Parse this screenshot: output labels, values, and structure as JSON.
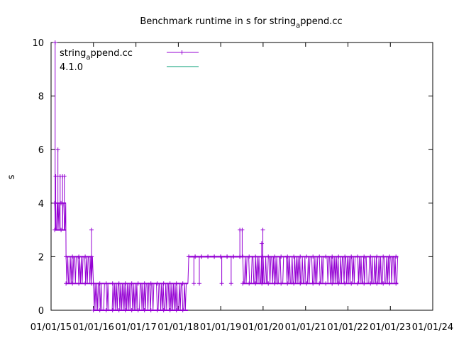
{
  "chart_data": {
    "type": "line",
    "title_main": "Benchmark runtime in s for string",
    "title_sub": "a",
    "title_end": "ppend.cc",
    "xlabel": "",
    "ylabel": "s",
    "xlim": [
      "2015-01-01",
      "2024-01-01"
    ],
    "ylim": [
      0,
      10
    ],
    "x_tick_labels": [
      "01/01/15",
      "01/01/16",
      "01/01/17",
      "01/01/18",
      "01/01/19",
      "01/01/20",
      "01/01/21",
      "01/01/22",
      "01/01/23",
      "01/01/24"
    ],
    "y_tick_labels": [
      "0",
      "2",
      "4",
      "6",
      "8",
      "10"
    ],
    "grid": false,
    "legend_position": "top-left",
    "series": [
      {
        "legend_main": "string",
        "legend_sub": "a",
        "legend_end": "ppend.cc",
        "color": "#9400d3",
        "marker": "plus",
        "segments": [
          {
            "from": "2015-02-01",
            "to": "2015-05-10",
            "low": 3,
            "high": 4,
            "spikes": [
              {
                "x": "2015-02-05",
                "y": 10
              },
              {
                "x": "2015-02-10",
                "y": 5
              },
              {
                "x": "2015-03-01",
                "y": 6
              },
              {
                "x": "2015-03-20",
                "y": 5
              },
              {
                "x": "2015-04-10",
                "y": 5
              },
              {
                "x": "2015-04-25",
                "y": 5
              }
            ]
          },
          {
            "from": "2015-05-10",
            "to": "2015-12-25",
            "low": 1,
            "high": 2,
            "spikes": [
              {
                "x": "2015-12-15",
                "y": 3
              }
            ]
          },
          {
            "from": "2016-01-01",
            "to": "2018-03-25",
            "low": 0,
            "high": 1,
            "spikes": []
          },
          {
            "from": "2018-04-01",
            "to": "2019-07-10",
            "low": 2,
            "high": 2,
            "dips": [
              {
                "x": "2018-05-15",
                "y": 1
              },
              {
                "x": "2018-07-01",
                "y": 1
              },
              {
                "x": "2019-01-10",
                "y": 1
              },
              {
                "x": "2019-04-01",
                "y": 1
              }
            ],
            "spikes": [
              {
                "x": "2019-06-15",
                "y": 3
              },
              {
                "x": "2019-07-05",
                "y": 3
              }
            ]
          },
          {
            "from": "2019-07-10",
            "to": "2023-03-10",
            "low": 1,
            "high": 2,
            "spikes": [
              {
                "x": "2019-12-30",
                "y": 3
              },
              {
                "x": "2019-12-20",
                "y": 2.5
              }
            ]
          }
        ]
      },
      {
        "legend_main": "4.1.0",
        "color": "#009e73",
        "points": []
      }
    ]
  }
}
